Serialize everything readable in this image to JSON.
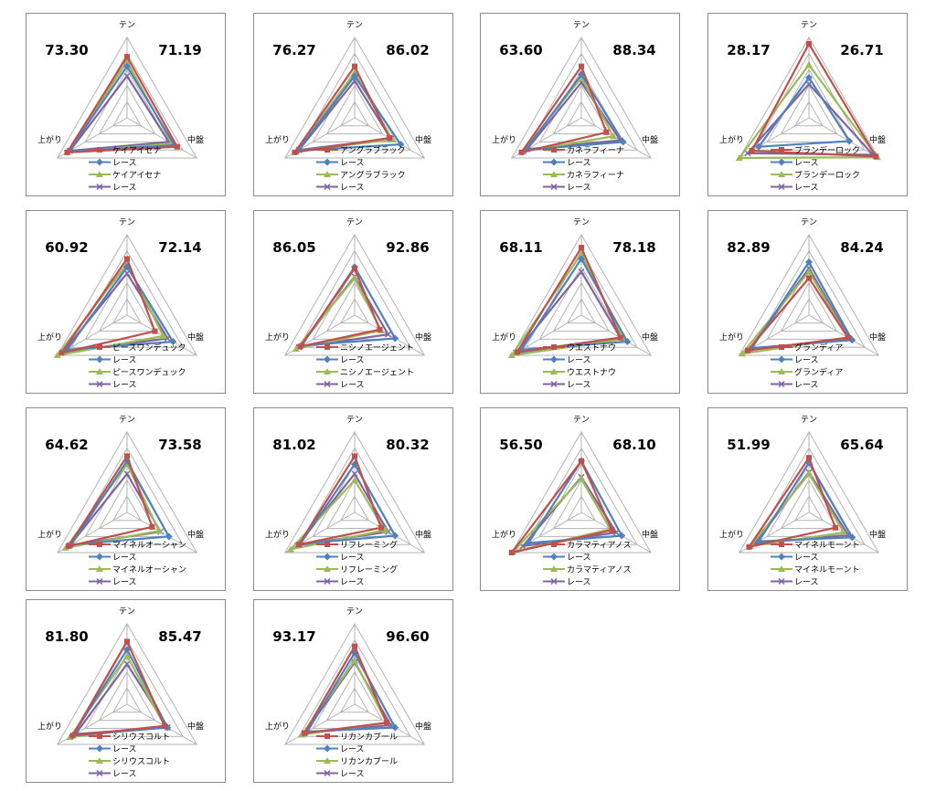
{
  "colors": {
    "red": "#c0504d",
    "blue": "#4f81bd",
    "green": "#9bbb59",
    "purple": "#8064a2",
    "grid": "#b3b3b3"
  },
  "axis_labels": [
    "テン",
    "中盤",
    "上がり"
  ],
  "legend_shared_label": "レース",
  "chart_data": [
    {
      "type": "radar",
      "title": "ケイアイセナ",
      "left_score": "73.30",
      "right_score": "71.19",
      "axes": [
        "テン",
        "中盤",
        "上がり"
      ],
      "range": [
        0,
        5
      ],
      "series": [
        {
          "name": "ケイアイセナ",
          "color": "red",
          "marker": "square",
          "values": [
            3.8,
            3.6,
            4.3
          ]
        },
        {
          "name": "レース",
          "color": "blue",
          "marker": "diamond",
          "values": [
            3.2,
            3.4,
            4.2
          ]
        },
        {
          "name": "ケイアイセナ",
          "color": "green",
          "marker": "triangle",
          "values": [
            3.5,
            3.2,
            4.3
          ]
        },
        {
          "name": "レース",
          "color": "purple",
          "marker": "x",
          "values": [
            2.6,
            3.0,
            4.1
          ]
        }
      ]
    },
    {
      "type": "radar",
      "title": "アングラブラック",
      "left_score": "76.27",
      "right_score": "86.02",
      "axes": [
        "テン",
        "中盤",
        "上がり"
      ],
      "range": [
        0,
        5
      ],
      "series": [
        {
          "name": "アングラブラック",
          "color": "red",
          "marker": "square",
          "values": [
            3.2,
            2.5,
            4.3
          ]
        },
        {
          "name": "レース",
          "color": "blue",
          "marker": "diamond",
          "values": [
            2.6,
            3.3,
            4.1
          ]
        },
        {
          "name": "アングラブラック",
          "color": "green",
          "marker": "triangle",
          "values": [
            2.8,
            2.7,
            4.2
          ]
        },
        {
          "name": "レース",
          "color": "purple",
          "marker": "x",
          "values": [
            2.3,
            2.6,
            4.0
          ]
        }
      ]
    },
    {
      "type": "radar",
      "title": "カネラフィーナ",
      "left_score": "63.60",
      "right_score": "88.34",
      "axes": [
        "テン",
        "中盤",
        "上がり"
      ],
      "range": [
        0,
        5
      ],
      "series": [
        {
          "name": "カネラフィーナ",
          "color": "red",
          "marker": "square",
          "values": [
            3.2,
            1.8,
            4.3
          ]
        },
        {
          "name": "レース",
          "color": "blue",
          "marker": "diamond",
          "values": [
            2.7,
            3.0,
            4.0
          ]
        },
        {
          "name": "カネラフィーナ",
          "color": "green",
          "marker": "triangle",
          "values": [
            2.5,
            2.3,
            4.2
          ]
        },
        {
          "name": "レース",
          "color": "purple",
          "marker": "x",
          "values": [
            2.2,
            2.8,
            3.9
          ]
        }
      ]
    },
    {
      "type": "radar",
      "title": "ブランデーロック",
      "left_score": "28.17",
      "right_score": "26.71",
      "axes": [
        "テン",
        "中盤",
        "上がり"
      ],
      "range": [
        0,
        5
      ],
      "series": [
        {
          "name": "ブランデーロック",
          "color": "red",
          "marker": "square",
          "values": [
            4.6,
            4.8,
            4.1
          ]
        },
        {
          "name": "レース",
          "color": "blue",
          "marker": "diamond",
          "values": [
            2.5,
            2.9,
            3.6
          ]
        },
        {
          "name": "ブランデーロック",
          "color": "green",
          "marker": "triangle",
          "values": [
            3.3,
            4.9,
            5.0
          ]
        },
        {
          "name": "レース",
          "color": "purple",
          "marker": "x",
          "values": [
            2.1,
            4.6,
            4.4
          ]
        }
      ]
    },
    {
      "type": "radar",
      "title": "ピースワンデュック",
      "left_score": "60.92",
      "right_score": "72.14",
      "axes": [
        "テン",
        "中盤",
        "上がり"
      ],
      "range": [
        0,
        5
      ],
      "series": [
        {
          "name": "ピースワンデュック",
          "color": "red",
          "marker": "square",
          "values": [
            3.5,
            2.0,
            4.7
          ]
        },
        {
          "name": "レース",
          "color": "blue",
          "marker": "diamond",
          "values": [
            3.0,
            3.3,
            4.3
          ]
        },
        {
          "name": "ピースワンデュック",
          "color": "green",
          "marker": "triangle",
          "values": [
            3.2,
            2.6,
            5.0
          ]
        },
        {
          "name": "レース",
          "color": "purple",
          "marker": "x",
          "values": [
            2.6,
            2.9,
            4.6
          ]
        }
      ]
    },
    {
      "type": "radar",
      "title": "ニシノエージェント",
      "left_score": "86.05",
      "right_score": "92.86",
      "axes": [
        "テン",
        "中盤",
        "上がり"
      ],
      "range": [
        0,
        5
      ],
      "series": [
        {
          "name": "ニシノエージェント",
          "color": "red",
          "marker": "square",
          "values": [
            2.9,
            1.8,
            3.9
          ]
        },
        {
          "name": "レース",
          "color": "blue",
          "marker": "diamond",
          "values": [
            3.0,
            2.9,
            3.8
          ]
        },
        {
          "name": "ニシノエージェント",
          "color": "green",
          "marker": "triangle",
          "values": [
            2.3,
            1.9,
            4.2
          ]
        },
        {
          "name": "レース",
          "color": "purple",
          "marker": "x",
          "values": [
            2.4,
            2.4,
            4.0
          ]
        }
      ]
    },
    {
      "type": "radar",
      "title": "ウエストナウ",
      "left_score": "68.11",
      "right_score": "78.18",
      "axes": [
        "テン",
        "中盤",
        "上がり"
      ],
      "range": [
        0,
        5
      ],
      "series": [
        {
          "name": "ウエストナウ",
          "color": "red",
          "marker": "square",
          "values": [
            4.2,
            2.8,
            4.6
          ]
        },
        {
          "name": "レース",
          "color": "blue",
          "marker": "diamond",
          "values": [
            3.5,
            3.3,
            4.3
          ]
        },
        {
          "name": "ウエストナウ",
          "color": "green",
          "marker": "triangle",
          "values": [
            3.8,
            3.0,
            5.0
          ]
        },
        {
          "name": "レース",
          "color": "purple",
          "marker": "x",
          "values": [
            2.7,
            2.8,
            4.7
          ]
        }
      ]
    },
    {
      "type": "radar",
      "title": "グランディア",
      "left_score": "82.89",
      "right_score": "84.24",
      "axes": [
        "テン",
        "中盤",
        "上がり"
      ],
      "range": [
        0,
        5
      ],
      "series": [
        {
          "name": "グランディア",
          "color": "red",
          "marker": "square",
          "values": [
            2.3,
            2.8,
            4.4
          ]
        },
        {
          "name": "レース",
          "color": "blue",
          "marker": "diamond",
          "values": [
            3.3,
            3.1,
            4.1
          ]
        },
        {
          "name": "グランディア",
          "color": "green",
          "marker": "triangle",
          "values": [
            2.7,
            2.8,
            4.8
          ]
        },
        {
          "name": "レース",
          "color": "purple",
          "marker": "x",
          "values": [
            2.9,
            2.9,
            4.3
          ]
        }
      ]
    },
    {
      "type": "radar",
      "title": "マイネルオーシャン",
      "left_score": "64.62",
      "right_score": "73.58",
      "axes": [
        "テン",
        "中盤",
        "上がり"
      ],
      "range": [
        0,
        5
      ],
      "series": [
        {
          "name": "マイネルオーシャン",
          "color": "red",
          "marker": "square",
          "values": [
            3.5,
            1.8,
            4.2
          ]
        },
        {
          "name": "レース",
          "color": "blue",
          "marker": "diamond",
          "values": [
            3.2,
            3.0,
            4.0
          ]
        },
        {
          "name": "マイネルオーシャン",
          "color": "green",
          "marker": "triangle",
          "values": [
            3.0,
            2.3,
            4.4
          ]
        },
        {
          "name": "レース",
          "color": "purple",
          "marker": "x",
          "values": [
            2.4,
            2.4,
            4.1
          ]
        }
      ]
    },
    {
      "type": "radar",
      "title": "リフレーミング",
      "left_score": "81.02",
      "right_score": "80.32",
      "axes": [
        "テン",
        "中盤",
        "上がり"
      ],
      "range": [
        0,
        5
      ],
      "series": [
        {
          "name": "リフレーミング",
          "color": "red",
          "marker": "square",
          "values": [
            3.5,
            1.9,
            4.0
          ]
        },
        {
          "name": "レース",
          "color": "blue",
          "marker": "diamond",
          "values": [
            3.0,
            2.9,
            3.9
          ]
        },
        {
          "name": "リフレーミング",
          "color": "green",
          "marker": "triangle",
          "values": [
            2.0,
            2.2,
            4.6
          ]
        },
        {
          "name": "レース",
          "color": "purple",
          "marker": "x",
          "values": [
            2.4,
            2.4,
            4.1
          ]
        }
      ]
    },
    {
      "type": "radar",
      "title": "カラマティアノス",
      "left_score": "56.50",
      "right_score": "68.10",
      "axes": [
        "テン",
        "中盤",
        "上がり"
      ],
      "range": [
        0,
        5
      ],
      "series": [
        {
          "name": "カラマティアノス",
          "color": "red",
          "marker": "square",
          "values": [
            3.2,
            2.2,
            5.0
          ]
        },
        {
          "name": "レース",
          "color": "blue",
          "marker": "diamond",
          "values": [
            3.2,
            2.9,
            3.8
          ]
        },
        {
          "name": "カラマティアノス",
          "color": "green",
          "marker": "triangle",
          "values": [
            2.1,
            2.1,
            4.9
          ]
        },
        {
          "name": "レース",
          "color": "purple",
          "marker": "x",
          "values": [
            2.2,
            2.5,
            4.2
          ]
        }
      ]
    },
    {
      "type": "radar",
      "title": "マイネルモーント",
      "left_score": "51.99",
      "right_score": "65.64",
      "axes": [
        "テン",
        "中盤",
        "上がり"
      ],
      "range": [
        0,
        5
      ],
      "series": [
        {
          "name": "マイネルモーント",
          "color": "red",
          "marker": "square",
          "values": [
            3.4,
            1.9,
            4.3
          ]
        },
        {
          "name": "レース",
          "color": "blue",
          "marker": "diamond",
          "values": [
            3.1,
            3.1,
            3.6
          ]
        },
        {
          "name": "マイネルモーント",
          "color": "green",
          "marker": "triangle",
          "values": [
            2.4,
            2.5,
            4.2
          ]
        },
        {
          "name": "レース",
          "color": "purple",
          "marker": "x",
          "values": [
            2.5,
            2.8,
            3.9
          ]
        }
      ]
    },
    {
      "type": "radar",
      "title": "シリウスコルト",
      "left_score": "81.80",
      "right_score": "85.47",
      "axes": [
        "テン",
        "中盤",
        "上がり"
      ],
      "range": [
        0,
        5
      ],
      "series": [
        {
          "name": "シリウスコルト",
          "color": "red",
          "marker": "square",
          "values": [
            3.9,
            2.7,
            3.9
          ]
        },
        {
          "name": "レース",
          "color": "blue",
          "marker": "diamond",
          "values": [
            3.4,
            2.9,
            3.9
          ]
        },
        {
          "name": "シリウスコルト",
          "color": "green",
          "marker": "triangle",
          "values": [
            3.0,
            2.7,
            4.1
          ]
        },
        {
          "name": "レース",
          "color": "purple",
          "marker": "x",
          "values": [
            2.5,
            2.9,
            3.7
          ]
        }
      ]
    },
    {
      "type": "radar",
      "title": "リカンカブール",
      "left_score": "93.17",
      "right_score": "96.60",
      "axes": [
        "テン",
        "中盤",
        "上がり"
      ],
      "range": [
        0,
        5
      ],
      "series": [
        {
          "name": "リカンカブール",
          "color": "red",
          "marker": "square",
          "values": [
            3.6,
            2.3,
            3.6
          ]
        },
        {
          "name": "レース",
          "color": "blue",
          "marker": "diamond",
          "values": [
            3.2,
            2.9,
            3.4
          ]
        },
        {
          "name": "リカンカブール",
          "color": "green",
          "marker": "triangle",
          "values": [
            2.7,
            2.3,
            3.8
          ]
        },
        {
          "name": "レース",
          "color": "purple",
          "marker": "x",
          "values": [
            2.6,
            2.6,
            3.6
          ]
        }
      ]
    }
  ]
}
